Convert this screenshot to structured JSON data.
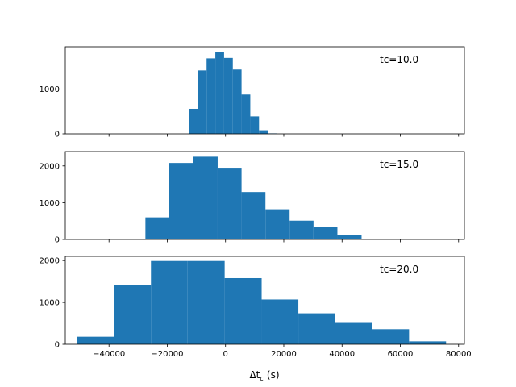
{
  "figure": {
    "xlabel_main": "Δt",
    "xlabel_sub": "c",
    "xlabel_unit": " (s)"
  },
  "chart_data": [
    {
      "type": "bar",
      "annotation": "tc=10.0",
      "xlim": [
        -55000,
        82000
      ],
      "ylim": [
        0,
        1950
      ],
      "yticks": [
        0,
        1000
      ],
      "xticks": [
        -40000,
        -20000,
        0,
        20000,
        40000,
        60000,
        80000
      ],
      "show_xticklabels": false,
      "bin_edges": [
        -12500,
        -9500,
        -6500,
        -3500,
        -500,
        2500,
        5500,
        8500,
        11500,
        14500,
        17500,
        20500
      ],
      "counts": [
        560,
        1420,
        1690,
        1840,
        1700,
        1440,
        880,
        390,
        80,
        10,
        0
      ]
    },
    {
      "type": "bar",
      "annotation": "tc=15.0",
      "xlim": [
        -55000,
        82000
      ],
      "ylim": [
        0,
        2390
      ],
      "yticks": [
        0,
        1000,
        2000
      ],
      "xticks": [
        -40000,
        -20000,
        0,
        20000,
        40000,
        60000,
        80000
      ],
      "show_xticklabels": false,
      "bin_edges": [
        -27500,
        -19300,
        -11000,
        -2700,
        5500,
        13700,
        22000,
        30200,
        38400,
        46700,
        54900
      ],
      "counts": [
        600,
        2080,
        2250,
        1950,
        1290,
        820,
        510,
        340,
        130,
        20
      ]
    },
    {
      "type": "bar",
      "annotation": "tc=20.0",
      "xlim": [
        -55000,
        82000
      ],
      "ylim": [
        0,
        2100
      ],
      "yticks": [
        0,
        1000,
        2000
      ],
      "xticks": [
        -40000,
        -20000,
        0,
        20000,
        40000,
        60000,
        80000
      ],
      "xticklabels": [
        "−40000",
        "−20000",
        "0",
        "20000",
        "40000",
        "60000",
        "80000"
      ],
      "show_xticklabels": true,
      "bin_edges": [
        -51000,
        -38300,
        -25600,
        -13000,
        -300,
        12400,
        25000,
        37700,
        50400,
        63000,
        75700
      ],
      "counts": [
        180,
        1420,
        1990,
        1990,
        1580,
        1070,
        740,
        510,
        360,
        70
      ]
    }
  ],
  "style": {
    "bar_color": "#1f77b4"
  }
}
